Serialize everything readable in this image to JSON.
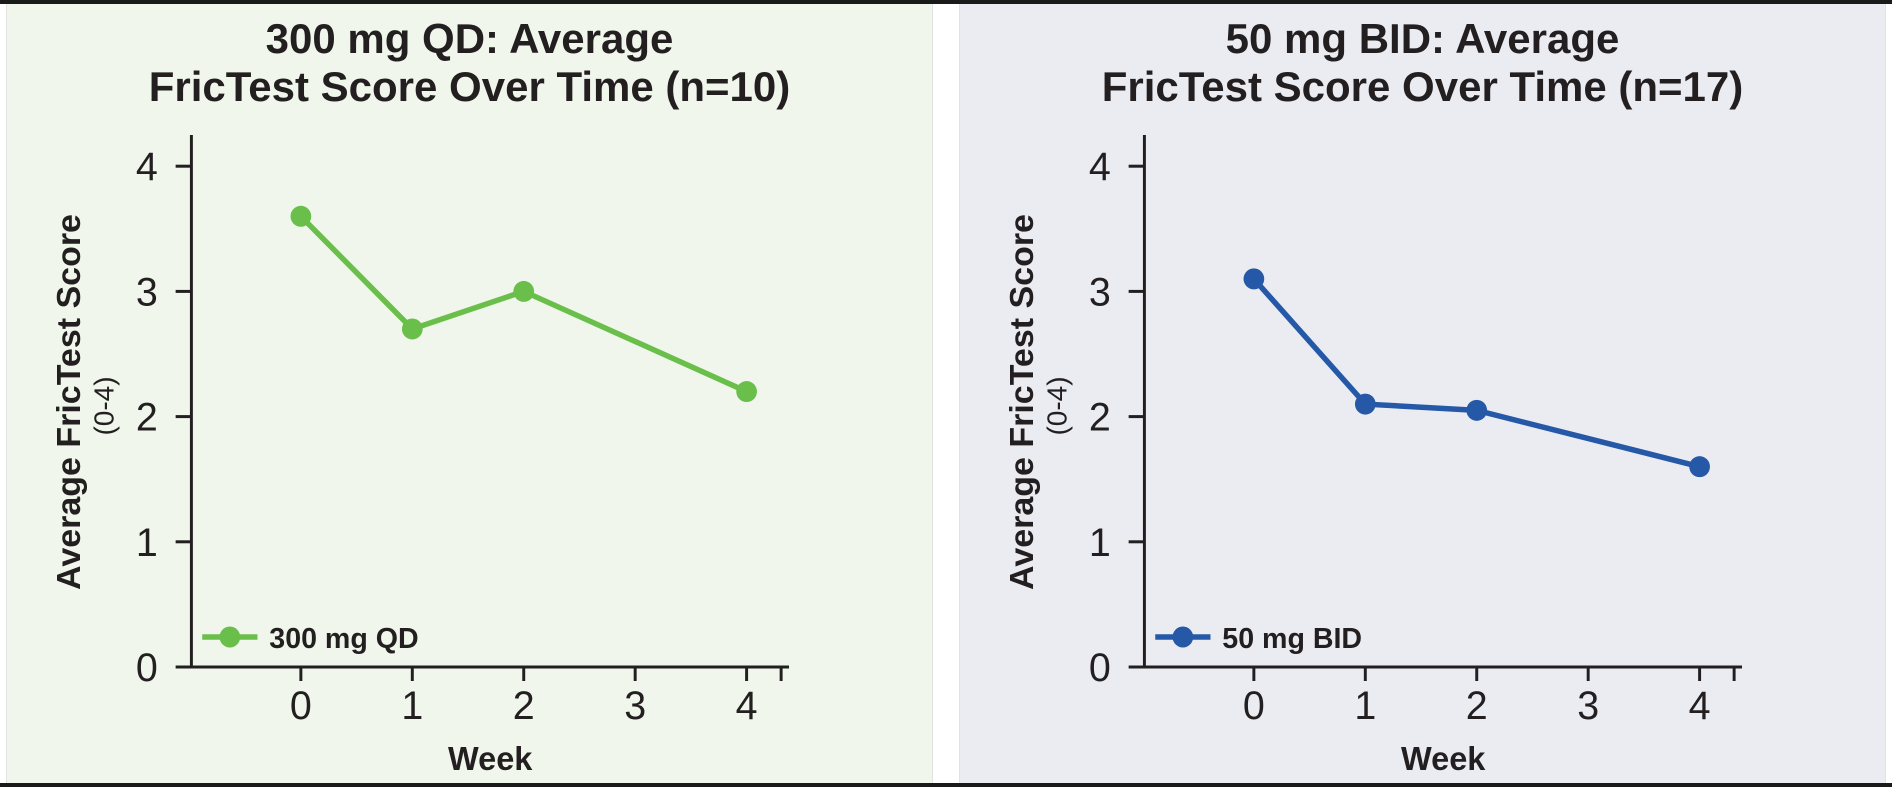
{
  "page": {
    "frame_border_color": "#1a1a1a",
    "gutter_color": "#ffffff",
    "ink_color": "#231f20"
  },
  "chart_data": [
    {
      "type": "line",
      "title_line1": "300 mg QD: Average",
      "title_line2": "FricTest Score Over Time (n=10)",
      "background": "#f0f6ec",
      "xlabel": "Week",
      "ylabel": "Average FricTest Score",
      "ylabel_sub": "(0-4)",
      "ylim": [
        0,
        4
      ],
      "yticks": [
        "0",
        "1",
        "2",
        "3",
        "4"
      ],
      "categories": [
        "0",
        "1",
        "2",
        "3",
        "4"
      ],
      "data_x": [
        0,
        1,
        2,
        4
      ],
      "series": [
        {
          "name": "300 mg QD",
          "values": [
            3.6,
            2.7,
            3.0,
            2.2
          ],
          "color": "#6abf4b"
        }
      ],
      "legend_position": "bottom-left-inside",
      "grid": false
    },
    {
      "type": "line",
      "title_line1": "50 mg BID: Average",
      "title_line2": "FricTest Score Over Time (n=17)",
      "background": "#ebecf2",
      "xlabel": "Week",
      "ylabel": "Average FricTest Score",
      "ylabel_sub": "(0-4)",
      "ylim": [
        0,
        4
      ],
      "yticks": [
        "0",
        "1",
        "2",
        "3",
        "4"
      ],
      "categories": [
        "0",
        "1",
        "2",
        "3",
        "4"
      ],
      "data_x": [
        0,
        1,
        2,
        4
      ],
      "series": [
        {
          "name": "50 mg BID",
          "values": [
            3.1,
            2.1,
            2.05,
            1.6
          ],
          "color": "#2559a7"
        }
      ],
      "legend_position": "bottom-left-inside",
      "grid": false
    }
  ]
}
